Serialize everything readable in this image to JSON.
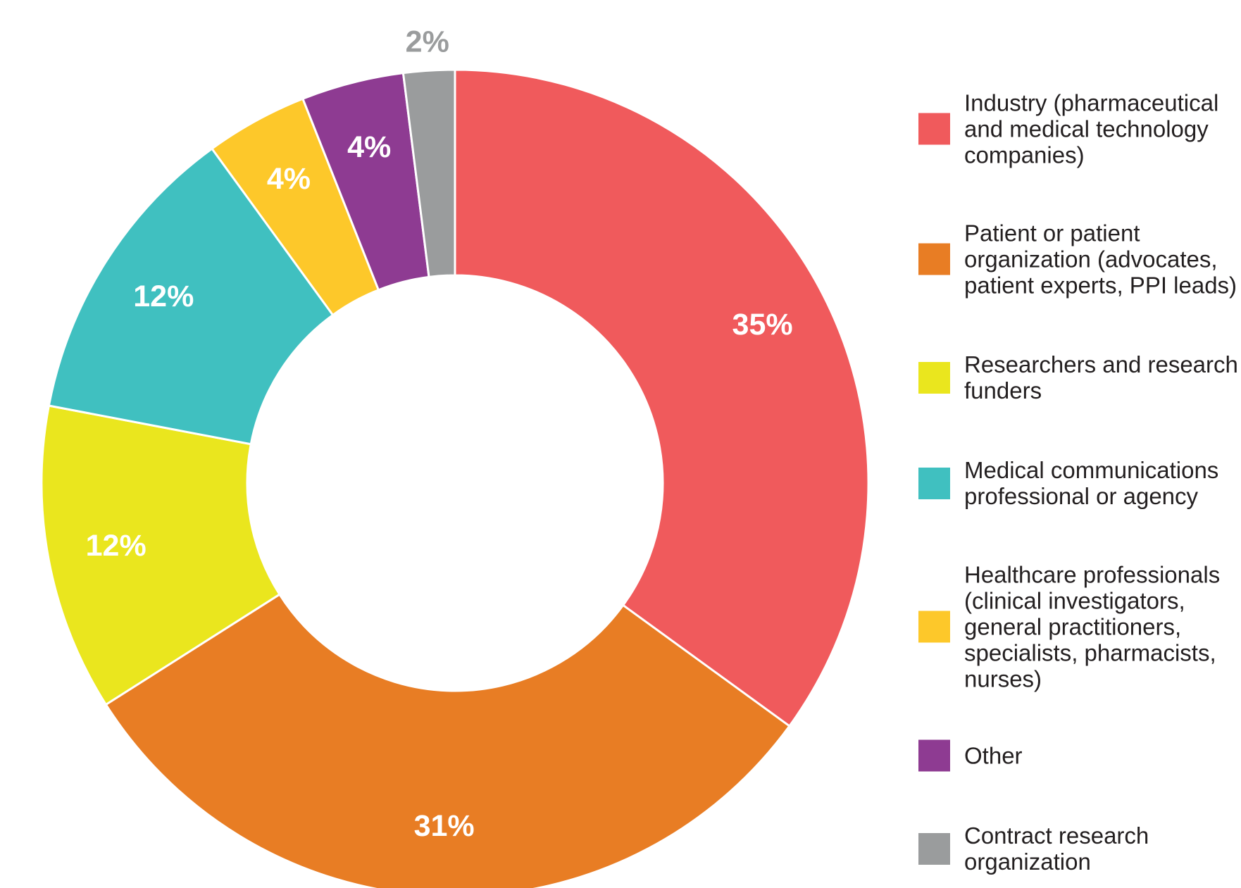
{
  "chart_data": {
    "type": "donut",
    "categories": [
      "Industry (pharmaceutical\nand medical technology\ncompanies)",
      "Patient or patient\norganization (advocates,\npatient experts, PPI leads)",
      "Researchers and research\nfunders",
      "Medical communications\nprofessional or agency",
      "Healthcare professionals\n(clinical investigators,\ngeneral practitioners,\nspecialists, pharmacists,\nnurses)",
      "Other",
      "Contract research\norganization"
    ],
    "values": [
      35,
      31,
      12,
      12,
      4,
      4,
      2
    ],
    "value_labels": [
      "35%",
      "31%",
      "12%",
      "12%",
      "4%",
      "4%",
      "2%"
    ],
    "colors": [
      "#f05a5c",
      "#e87d24",
      "#eae61e",
      "#40c0c0",
      "#fdc82a",
      "#8e3b92",
      "#9a9c9d"
    ],
    "legend": "right"
  }
}
